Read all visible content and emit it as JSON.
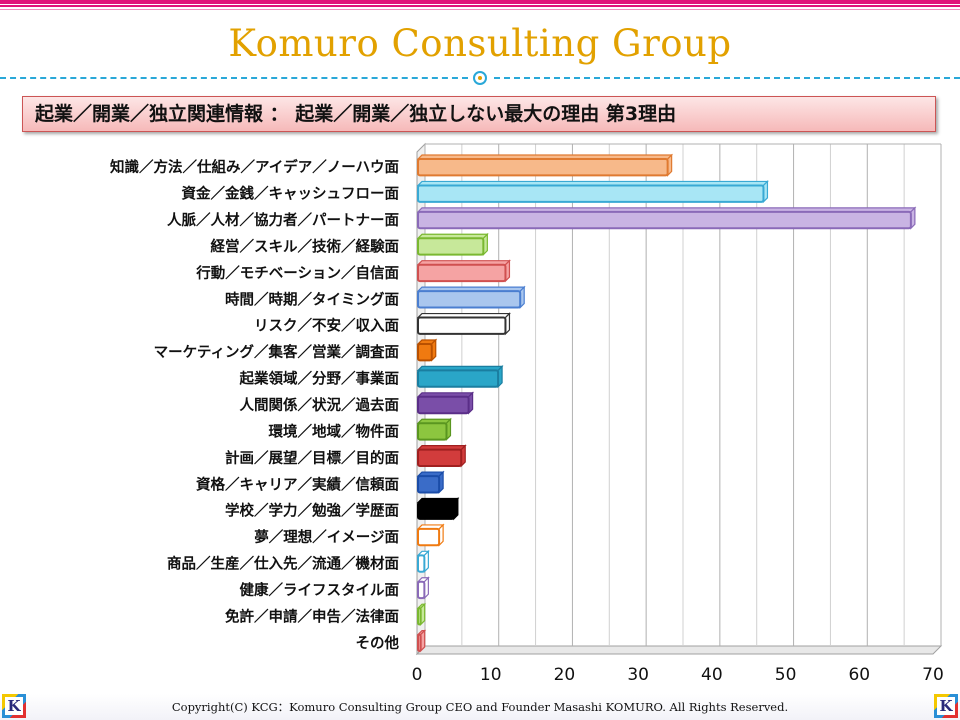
{
  "header": {
    "brand_title": "Komuro Consulting Group",
    "subtitle": "起業／開業／独立関連情報 ： 起業／開業／独立しない最大の理由 第3理由"
  },
  "chart_data": {
    "type": "bar",
    "orientation": "horizontal",
    "title": "",
    "xlabel": "",
    "ylabel": "",
    "xlim": [
      0,
      70
    ],
    "ticks": [
      "0",
      "10",
      "20",
      "30",
      "40",
      "50",
      "60",
      "70"
    ],
    "grid": true,
    "categories": [
      "知識／方法／仕組み／アイデア／ノーハウ面",
      "資金／金銭／キャッシュフロー面",
      "人脈／人材／協力者／パートナー面",
      "経営／スキル／技術／経験面",
      "行動／モチベーション／自信面",
      "時間／時期／タイミング面",
      "リスク／不安／収入面",
      "マーケティング／集客／営業／調査面",
      "起業領域／分野／事業面",
      "人間関係／状況／過去面",
      "環境／地域／物件面",
      "計画／展望／目標／目的面",
      "資格／キャリア／実績／信頼面",
      "学校／学力／勉強／学歴面",
      "夢／理想／イメージ面",
      "商品／生産／仕入先／流通／機材面",
      "健康／ライフスタイル面",
      "免許／申請／申告／法律面",
      "その他"
    ],
    "values": [
      34,
      47,
      67,
      9,
      12,
      14,
      12,
      2,
      11,
      7,
      4,
      6,
      3,
      5,
      3,
      1,
      1,
      0.5,
      0.5
    ],
    "colors": [
      "#f7b98a",
      "#a8e6f5",
      "#c9b4e3",
      "#c7e89a",
      "#f5a3a3",
      "#a9c6ee",
      "#ffffff",
      "#f07a10",
      "#2aa6c8",
      "#7a4ea8",
      "#8cc63f",
      "#d23c3c",
      "#3a6cc8",
      "#000000",
      "#ffffff",
      "#ffffff",
      "#ffffff",
      "#c7e89a",
      "#f5a3a3"
    ],
    "edge_colors": [
      "#e07a30",
      "#39a9d4",
      "#8a6ab8",
      "#7ab830",
      "#d05050",
      "#4a7ed0",
      "#333333",
      "#b95000",
      "#1a7ea0",
      "#5a2e88",
      "#5a9620",
      "#a02020",
      "#1a4ca8",
      "#000000",
      "#f07a10",
      "#39a9d4",
      "#8a6ab8",
      "#7ab830",
      "#d05050"
    ]
  },
  "footer": {
    "copyright": "Copyright(C) KCG：Komuro Consulting Group CEO and Founder Masashi KOMURO. All Rights Reserved.",
    "logo_letter": "K"
  }
}
